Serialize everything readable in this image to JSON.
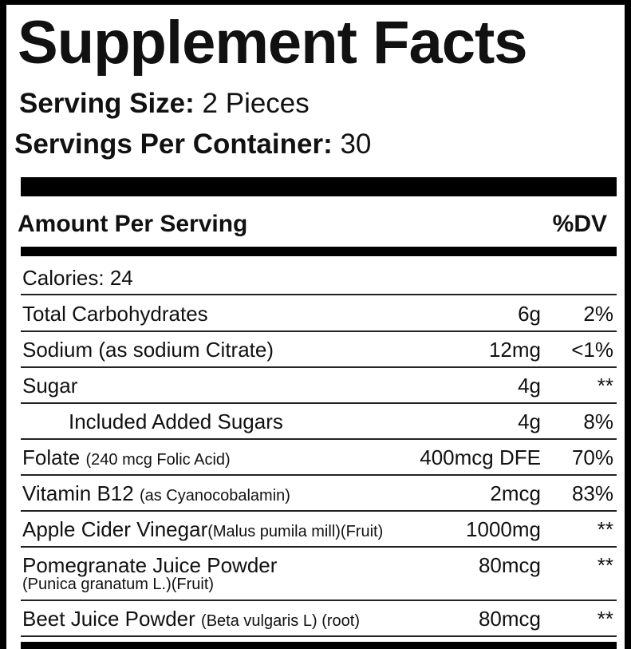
{
  "header": {
    "title": "Supplement Facts",
    "serving_size": {
      "label": "Serving Size:",
      "value": "2 Pieces"
    },
    "servings_per_container": {
      "label": "Servings Per Container:",
      "value": "30"
    }
  },
  "table": {
    "amount_header": "Amount Per Serving",
    "dv_header": "%DV",
    "calories": "Calories: 24",
    "rows": [
      {
        "name": "Total Carbohydrates",
        "amount": "6g",
        "dv": "2%"
      },
      {
        "name": "Sodium (as sodium Citrate)",
        "amount": "12mg",
        "dv": "<1%"
      },
      {
        "name": "Sugar",
        "amount": "4g",
        "dv": "**"
      },
      {
        "name": "Included Added Sugars",
        "amount": "4g",
        "dv": "8%"
      },
      {
        "name": "Folate",
        "note": "(240 mcg Folic Acid)",
        "amount": "400mcg DFE",
        "dv": "70%"
      },
      {
        "name": "Vitamin B12",
        "note": "(as Cyanocobalamin)",
        "amount": "2mcg",
        "dv": "83%"
      },
      {
        "name": "Apple Cider Vinegar",
        "note": "(Malus pumila mill)(Fruit)",
        "amount": "1000mg",
        "dv": "**"
      },
      {
        "name": "Pomegranate Juice Powder",
        "note_line2": "(Punica granatum L.)(Fruit)",
        "amount": "80mcg",
        "dv": "**"
      },
      {
        "name": "Beet Juice Powder",
        "note": "(Beta vulgaris L) (root)",
        "amount": "80mcg",
        "dv": "**"
      }
    ]
  }
}
